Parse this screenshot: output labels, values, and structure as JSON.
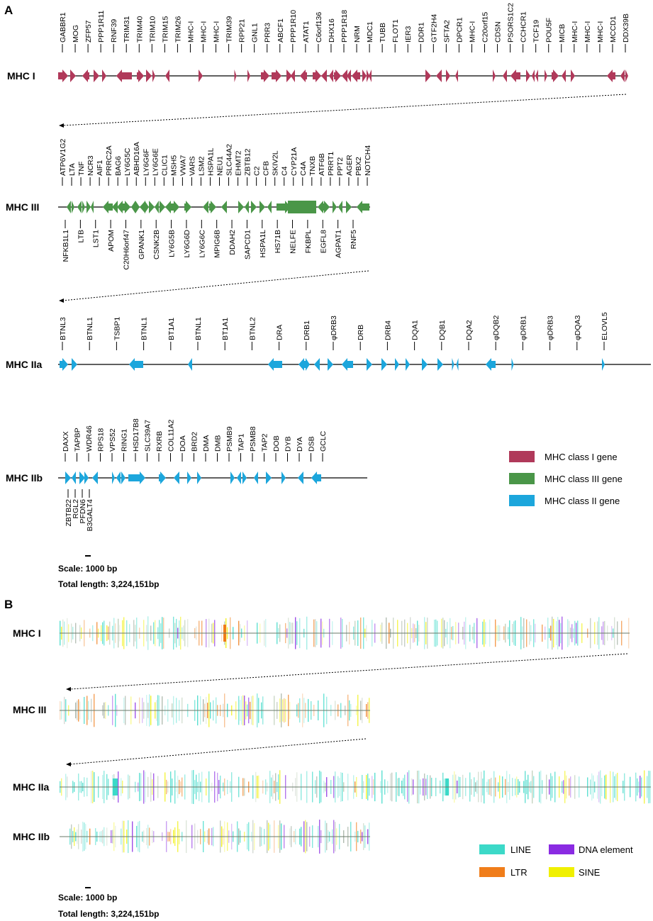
{
  "panel_a_label": "A",
  "panel_b_label": "B",
  "colors": {
    "class1": "#b0395a",
    "class3": "#4a9648",
    "class2": "#1ca6dc",
    "line": "#3cd9c8",
    "ltr": "#f07d1a",
    "dna": "#8a2be2",
    "sine": "#f0f000"
  },
  "tracks": [
    {
      "name": "MHC I",
      "cls": "class1",
      "top": [
        "GABBR1",
        "MOG",
        "ZFP57",
        "PPP1R11",
        "RNF39",
        "TRIM31",
        "TRIM40",
        "TRIM10",
        "TRIM15",
        "TRIM26",
        "MHC-I",
        "MHC-I",
        "MHC-I",
        "TRIM39",
        "RPP21",
        "GNL1",
        "PRR3",
        "ABCF1",
        "PPP1R10",
        "ATAT1",
        "C6orf136",
        "DHX16",
        "PPP1R18",
        "NRM",
        "MDC1",
        "TUBB",
        "FLOT1",
        "IER3",
        "DDR1",
        "GTF2H4",
        "SFTA2",
        "DPCR1",
        "MHC-I",
        "C20orf15",
        "CDSN",
        "PSORS1C2",
        "CCHCR1",
        "TCF19",
        "POU5F",
        "MICB",
        "MHC-I",
        "MHC-I",
        "MHC-I",
        "MCCD1",
        "DDX39B"
      ],
      "bottom": []
    },
    {
      "name": "MHC III",
      "cls": "class3",
      "top": [
        "ATP6V1G2",
        "LTA",
        "TNF",
        "NCR3",
        "AIF1",
        "PRRC2A",
        "BAG6",
        "LY6G5C",
        "ABHD16A",
        "LY6G6F",
        "LY6G6E",
        "CLIC1",
        "MSH5",
        "VWA7",
        "VARS",
        "LSM2",
        "HSPA1L",
        "NEU1",
        "SLC44A2",
        "EHMT2",
        "ZBTB12",
        "C2",
        "CFB",
        "SKIV2L",
        "C4",
        "CYP21A",
        "C4A",
        "TNXB",
        "ATF6B",
        "PRRT1",
        "PPT2",
        "AGER",
        "PBX2",
        "NOTCH4"
      ],
      "bottom": [
        "NFKB1L1",
        "LTB",
        "LST1",
        "APOM",
        "C20H6orf47",
        "GPANK1",
        "CSNK2B",
        "LY6G5B",
        "LY6G6D",
        "LY6G6C",
        "MPIG6B",
        "DDAH2",
        "SAPCD1",
        "HSPA1L",
        "HS71B",
        "NELFE",
        "FKBPL",
        "EGFL8",
        "AGPAT1",
        "RNF5"
      ]
    },
    {
      "name": "MHC IIa",
      "cls": "class2",
      "top": [
        "BTNL3",
        "BTNL1",
        "TSBP1",
        "BTNL1",
        "BT1A1",
        "BTNL1",
        "BT1A1",
        "BTNL2",
        "DRA",
        "DRB1",
        "φDRB3",
        "DRB",
        "DRB4",
        "DQA1",
        "DQB1",
        "DQA2",
        "φDQB2",
        "φDRB1",
        "φDRB3",
        "φDQA3",
        "ELOVL5"
      ],
      "bottom": []
    },
    {
      "name": "MHC IIb",
      "cls": "class2",
      "top": [
        "DAXX",
        "TAPBP",
        "WDR46",
        "RPS18",
        "VPS52",
        "RING1",
        "HSD17B8",
        "SLC39A7",
        "RXRB",
        "COL11A2",
        "DOA",
        "BRD2",
        "DMA",
        "DMB",
        "PSMB9",
        "TAP1",
        "PSMB8",
        "TAP2",
        "DOB",
        "DYB",
        "DYA",
        "DSB",
        "GCLC"
      ],
      "bottom": [
        "ZBTB22",
        "RGL2",
        "PFDN6",
        "B3GALT4"
      ]
    }
  ],
  "repeat_tracks": [
    {
      "name": "MHC I"
    },
    {
      "name": "MHC III"
    },
    {
      "name": "MHC IIa"
    },
    {
      "name": "MHC IIb"
    }
  ],
  "scale": {
    "label": "Scale: 1000 bp",
    "total": "Total length: 3,224,151bp"
  },
  "legend_a": [
    {
      "label": "MHC class I gene",
      "color": "class1"
    },
    {
      "label": "MHC class III gene",
      "color": "class3"
    },
    {
      "label": "MHC class II gene",
      "color": "class2"
    }
  ],
  "legend_b": [
    {
      "label": "LINE",
      "color": "line"
    },
    {
      "label": "DNA element",
      "color": "dna"
    },
    {
      "label": "LTR",
      "color": "ltr"
    },
    {
      "label": "SINE",
      "color": "sine"
    }
  ]
}
